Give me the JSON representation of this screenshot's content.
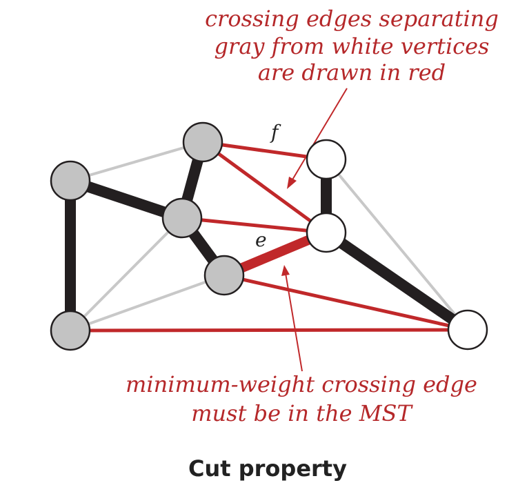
{
  "annotations": {
    "top": [
      "crossing edges separating",
      "gray from white vertices",
      "are drawn in red"
    ],
    "bottom": [
      "minimum-weight crossing edge",
      "must be in the MST"
    ]
  },
  "edge_labels": {
    "f": "f",
    "e": "e"
  },
  "caption": "Cut property",
  "colors": {
    "red": "#c0282a",
    "black": "#231f20",
    "gray_edge": "#c8c8c8",
    "gray_vertex": "#c3c3c3",
    "white_vertex": "#ffffff"
  },
  "graph": {
    "vertices": [
      {
        "id": "g1",
        "set": "gray"
      },
      {
        "id": "g2",
        "set": "gray"
      },
      {
        "id": "g3",
        "set": "gray"
      },
      {
        "id": "g4",
        "set": "gray"
      },
      {
        "id": "g5",
        "set": "gray"
      },
      {
        "id": "w1",
        "set": "white"
      },
      {
        "id": "w2",
        "set": "white"
      },
      {
        "id": "w3",
        "set": "white"
      }
    ],
    "edges": [
      {
        "from": "g2",
        "to": "g1",
        "kind": "thin-gray"
      },
      {
        "from": "g3",
        "to": "g5",
        "kind": "thin-gray"
      },
      {
        "from": "g4",
        "to": "g5",
        "kind": "thin-gray"
      },
      {
        "from": "w1",
        "to": "w3",
        "kind": "thin-gray"
      },
      {
        "from": "g1",
        "to": "g3",
        "kind": "mst-black"
      },
      {
        "from": "g1",
        "to": "g5",
        "kind": "mst-black"
      },
      {
        "from": "g2",
        "to": "g3",
        "kind": "mst-black"
      },
      {
        "from": "g3",
        "to": "g4",
        "kind": "mst-black"
      },
      {
        "from": "w1",
        "to": "w2",
        "kind": "mst-black"
      },
      {
        "from": "w2",
        "to": "w3",
        "kind": "mst-black"
      },
      {
        "from": "g2",
        "to": "w1",
        "kind": "crossing-red",
        "label": "f"
      },
      {
        "from": "g2",
        "to": "w2",
        "kind": "crossing-red"
      },
      {
        "from": "g3",
        "to": "w2",
        "kind": "crossing-red"
      },
      {
        "from": "g4",
        "to": "w2",
        "kind": "crossing-red-min",
        "label": "e"
      },
      {
        "from": "g4",
        "to": "w3",
        "kind": "crossing-red"
      },
      {
        "from": "g5",
        "to": "w3",
        "kind": "crossing-red"
      }
    ]
  }
}
